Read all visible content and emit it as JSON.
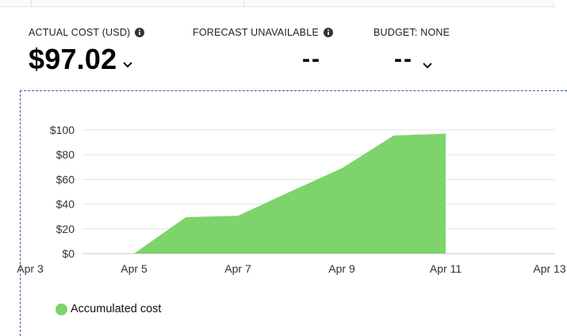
{
  "metrics": {
    "actual_cost": {
      "label": "ACTUAL COST (USD)",
      "value": "$97.02"
    },
    "forecast": {
      "label": "FORECAST UNAVAILABLE",
      "value": "--"
    },
    "budget": {
      "label": "BUDGET: NONE",
      "value": "--"
    }
  },
  "icons": {
    "info": "info-icon",
    "dropdown": "chevron-down-icon"
  },
  "colors": {
    "area_fill": "#7cd46a",
    "panel_border": "#2c5d9c",
    "grid": "#e3e3e3"
  },
  "chart_data": {
    "type": "area",
    "title": "",
    "xlabel": "",
    "ylabel": "",
    "x_ticks": [
      "Apr 3",
      "Apr 5",
      "Apr 7",
      "Apr 9",
      "Apr 11",
      "Apr 13"
    ],
    "y_ticks": [
      "$0",
      "$20",
      "$40",
      "$60",
      "$80",
      "$100"
    ],
    "ylim": [
      0,
      100
    ],
    "grid": true,
    "legend_position": "bottom-left",
    "series": [
      {
        "name": "Accumulated cost",
        "color": "#7cd46a",
        "x": [
          "Apr 5",
          "Apr 6",
          "Apr 7",
          "Apr 8",
          "Apr 9",
          "Apr 10",
          "Apr 11"
        ],
        "values": [
          0,
          29.5,
          30.5,
          50,
          69,
          95.5,
          97.02
        ]
      }
    ]
  }
}
